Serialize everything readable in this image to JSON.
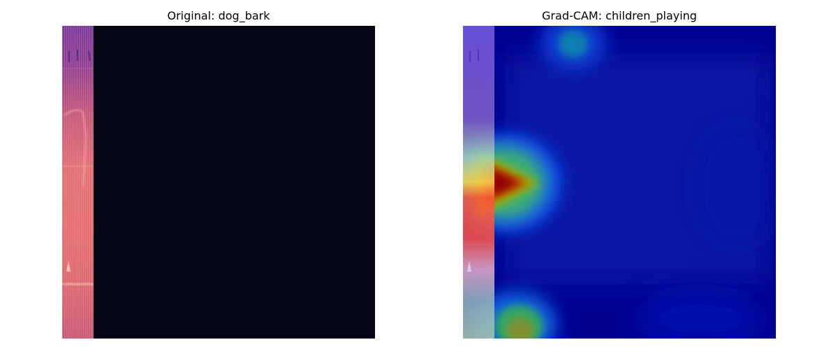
{
  "panels": [
    {
      "title": "Original: dog_bark",
      "content": "mel-spectrogram",
      "colormap": "magma",
      "background_color": "#030512"
    },
    {
      "title": "Grad-CAM: children_playing",
      "content": "grad-cam-heatmap-overlay",
      "colormap": "jet",
      "background_color": "#00008f"
    }
  ]
}
